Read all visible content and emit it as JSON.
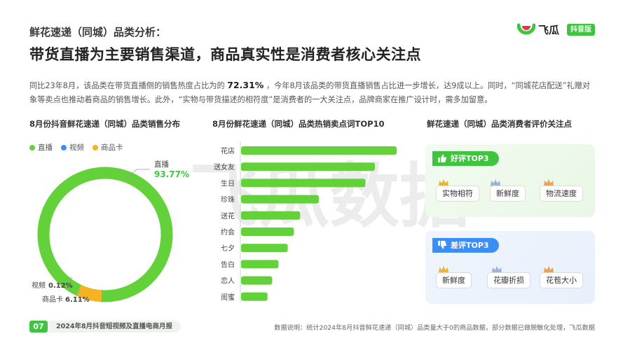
{
  "header": {
    "subtitle": "鲜花速递（同城）品类分析：",
    "title": "带货直播为主要销售渠道，商品真实性是消费者核心关注点"
  },
  "logo": {
    "name": "飞瓜",
    "badge": "抖音版"
  },
  "watermark": "飞瓜数据",
  "intro": {
    "part1": "同比23年8月，该品类在带货直播侧的销售热度占比为的",
    "highlight": "72.31%",
    "part2": "，今年8月该品类的带货直播销售占比进一步增长，达9成以上。同时，“同城花店配送”礼赠对象等卖点也推动着商品的销售增长。此外，“实物与带货描述的相符度”是消费者的一大关注点，品牌商家在推广设计时，需多加留意。"
  },
  "sections": {
    "donut": "8月份抖音鲜花速递（同城）品类销售分布",
    "bars": "8月份鲜花速递（同城）品类热销卖点词TOP10",
    "reviews": "鲜花速递（同城）品类消费者评价关注点"
  },
  "chart_data": [
    {
      "type": "pie",
      "title": "8月份抖音鲜花速递（同城）品类销售分布",
      "legend": "top-left",
      "slices": [
        {
          "name": "直播",
          "value": 93.77,
          "label": "93.77%",
          "color": "#63d13a"
        },
        {
          "name": "视频",
          "value": 0.12,
          "label": "0.12%",
          "color": "#3a8ef6"
        },
        {
          "name": "商品卡",
          "value": 6.11,
          "label": "6.11%",
          "color": "#f5b324"
        }
      ]
    },
    {
      "type": "bar",
      "orientation": "horizontal",
      "title": "8月份鲜花速递（同城）品类热销卖点词TOP10",
      "categories": [
        "花店",
        "送女友",
        "生日",
        "珍珠",
        "送花",
        "约会",
        "七夕",
        "告白",
        "恋人",
        "闺蜜"
      ],
      "values": [
        100,
        86,
        80,
        50,
        38,
        34,
        30,
        24,
        20,
        17
      ],
      "color": "#63d13a"
    }
  ],
  "reviews": {
    "good": {
      "label": "好评TOP3",
      "items": [
        "实物相符",
        "新鲜度",
        "物流速度"
      ]
    },
    "bad": {
      "label": "差评TOP3",
      "items": [
        "新鲜度",
        "花瓣折损",
        "花苞大小"
      ]
    }
  },
  "footer": {
    "page": "07",
    "report": "2024年8月抖音短视频及直播电商月报",
    "note": "数据说明：统计2024年8月抖音鲜花速递（同城）品类量大于0的商品数据，部分数据已做脱敏化处理，飞瓜数据"
  }
}
